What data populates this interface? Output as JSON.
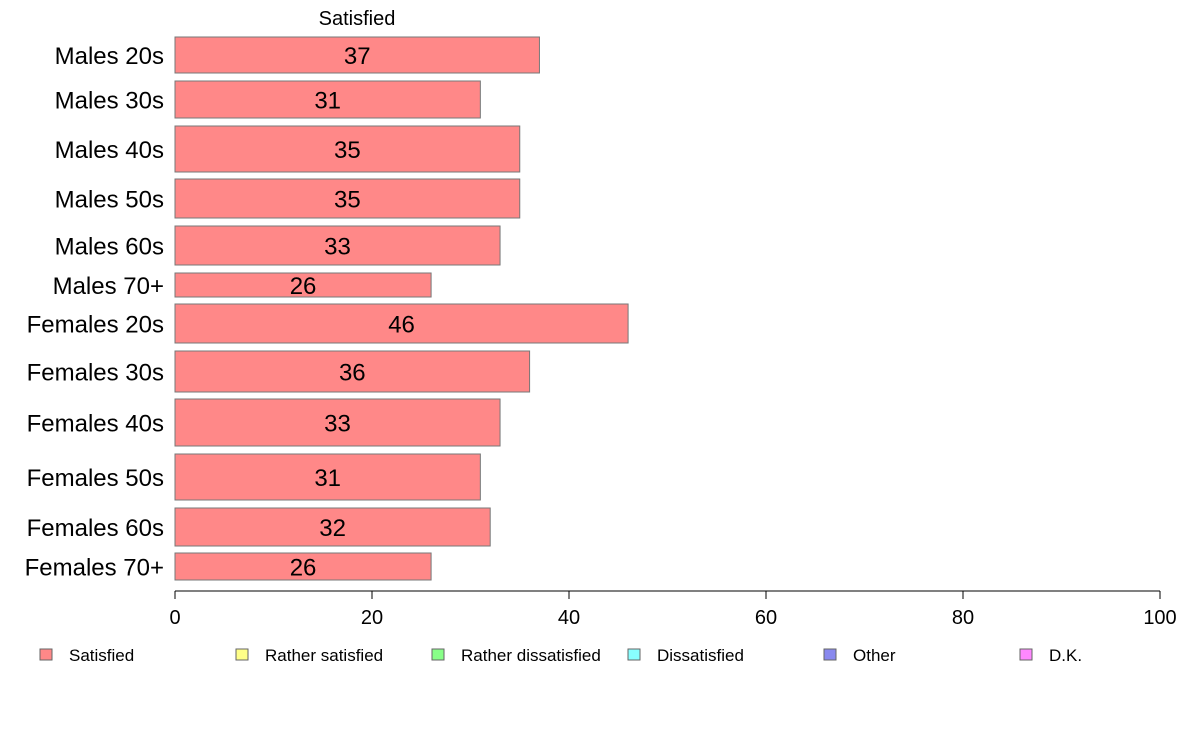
{
  "chart_data": {
    "type": "bar",
    "orientation": "horizontal",
    "header": "Satisfied",
    "categories": [
      "Males 20s",
      "Males 30s",
      "Males 40s",
      "Males 50s",
      "Males 60s",
      "Males 70+",
      "Females 20s",
      "Females 30s",
      "Females 40s",
      "Females 50s",
      "Females 60s",
      "Females 70+"
    ],
    "series": [
      {
        "name": "Satisfied",
        "color": "#FF8888",
        "values": [
          37,
          31,
          35,
          35,
          33,
          26,
          46,
          36,
          33,
          31,
          32,
          26
        ],
        "labels": [
          "37",
          "31",
          "35",
          "35",
          "33",
          "26",
          "46",
          "36",
          "33",
          "31",
          "32",
          "26"
        ]
      }
    ],
    "xlim": [
      0,
      100
    ],
    "xticks": [
      "0",
      "20",
      "40",
      "60",
      "80",
      "100"
    ],
    "grid": false,
    "legend": {
      "position": "bottom",
      "items": [
        {
          "label": "Satisfied",
          "color": "#FF8888"
        },
        {
          "label": "Rather satisfied",
          "color": "#FFFF88"
        },
        {
          "label": "Rather dissatisfied",
          "color": "#88FF88"
        },
        {
          "label": "Dissatisfied",
          "color": "#88FFFF"
        },
        {
          "label": "Other",
          "color": "#8888EE"
        },
        {
          "label": "D.K.",
          "color": "#FF88FF"
        }
      ]
    }
  }
}
